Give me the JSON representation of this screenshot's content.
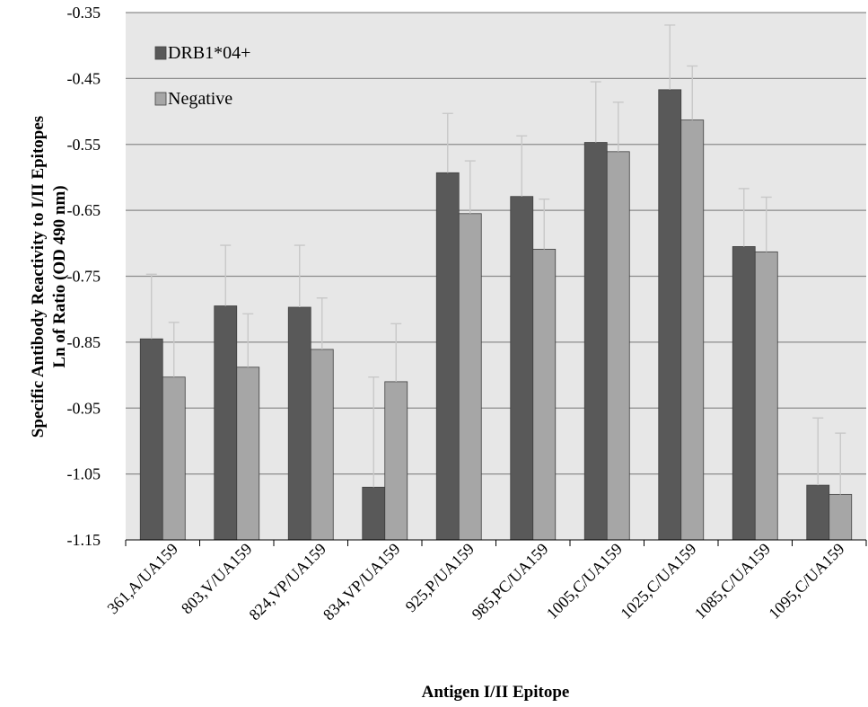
{
  "chart_data": {
    "type": "bar",
    "title": "",
    "xlabel": "Antigen I/II Epitope",
    "ylabel_lines": [
      "Specific Antibody Reactivity to I/II Epitopes",
      "Ln of Ratio (OD 490 nm)"
    ],
    "ylim": [
      -1.15,
      -0.35
    ],
    "yticks": [
      -0.35,
      -0.45,
      -0.55,
      -0.65,
      -0.75,
      -0.85,
      -0.95,
      -1.05,
      -1.15
    ],
    "ytick_labels": [
      "-0.35",
      "-0.45",
      "-0.55",
      "-0.65",
      "-0.75",
      "-0.85",
      "-0.95",
      "-1.05",
      "-1.15"
    ],
    "grid": true,
    "legend_position": "top-left",
    "categories": [
      "361,A/UA159",
      "803,V/UA159",
      "824,VP/UA159",
      "834,VP/UA159",
      "925,P/UA159",
      "985,PC/UA159",
      "1005,C/UA159",
      "1025,C/UA159",
      "1085,C/UA159",
      "1095,C/UA159"
    ],
    "series": [
      {
        "name": "DRB1*04+",
        "color": "#595959",
        "values": [
          -0.845,
          -0.795,
          -0.797,
          -1.07,
          -0.593,
          -0.629,
          -0.547,
          -0.467,
          -0.705,
          -1.067
        ],
        "errors": [
          0.098,
          0.092,
          0.094,
          0.167,
          0.09,
          0.092,
          0.092,
          0.098,
          0.088,
          0.102
        ]
      },
      {
        "name": "Negative",
        "color": "#a6a6a6",
        "values": [
          -0.903,
          -0.888,
          -0.861,
          -0.91,
          -0.655,
          -0.709,
          -0.561,
          -0.513,
          -0.713,
          -1.081
        ],
        "errors": [
          0.083,
          0.081,
          0.078,
          0.088,
          0.08,
          0.076,
          0.075,
          0.082,
          0.083,
          0.093
        ]
      }
    ]
  }
}
